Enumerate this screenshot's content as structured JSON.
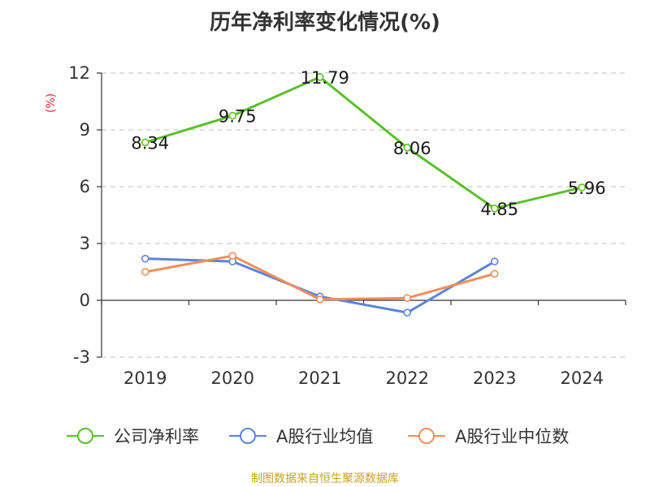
{
  "chart_data": {
    "type": "line",
    "title": "历年净利率变化情况(%)",
    "ylabel": "(%)",
    "categories": [
      "2019",
      "2020",
      "2021",
      "2022",
      "2023",
      "2024"
    ],
    "ylim": [
      -3,
      12
    ],
    "yticks": [
      -3,
      0,
      3,
      6,
      9,
      12
    ],
    "yticks_labels": [
      "-3",
      "0",
      "3",
      "6",
      "9",
      "12"
    ],
    "grid": true,
    "legend_position": "bottom",
    "series": [
      {
        "name": "公司净利率",
        "color": "#5cbf2a",
        "values": [
          8.34,
          9.75,
          11.79,
          8.06,
          4.85,
          5.96
        ],
        "labels": [
          "8.34",
          "9.75",
          "11.79",
          "8.06",
          "4.85",
          "5.96"
        ]
      },
      {
        "name": "A股行业均值",
        "color": "#5b84dc",
        "values": [
          2.2,
          2.05,
          0.2,
          -0.65,
          2.05,
          null
        ]
      },
      {
        "name": "A股行业中位数",
        "color": "#f28e5b",
        "values": [
          1.5,
          2.35,
          0.05,
          0.12,
          1.4,
          null
        ]
      }
    ],
    "source": "制图数据来自恒生聚源数据库"
  }
}
